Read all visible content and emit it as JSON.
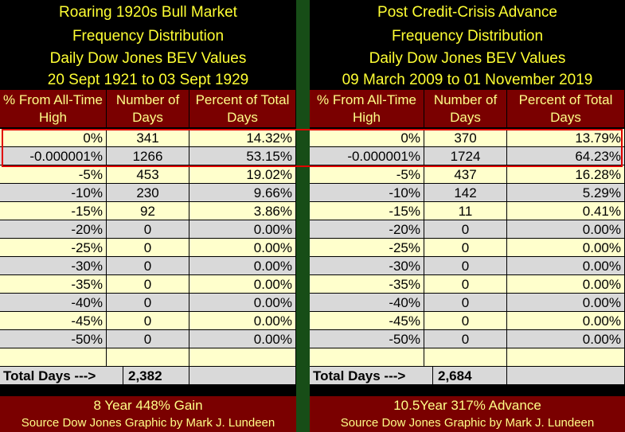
{
  "panels": [
    {
      "title": "Roaring 1920s Bull Market",
      "line2": "Frequency Distribution",
      "line3": "Daily Dow Jones BEV Values",
      "line4": "20 Sept 1921 to 03 Sept 1929",
      "headers": [
        "% From All-Time High",
        "Number of Days",
        "Percent of Total Days"
      ],
      "rows": [
        [
          "0%",
          "341",
          "14.32%"
        ],
        [
          "-0.000001%",
          "1266",
          "53.15%"
        ],
        [
          "-5%",
          "453",
          "19.02%"
        ],
        [
          "-10%",
          "230",
          "9.66%"
        ],
        [
          "-15%",
          "92",
          "3.86%"
        ],
        [
          "-20%",
          "0",
          "0.00%"
        ],
        [
          "-25%",
          "0",
          "0.00%"
        ],
        [
          "-30%",
          "0",
          "0.00%"
        ],
        [
          "-35%",
          "0",
          "0.00%"
        ],
        [
          "-40%",
          "0",
          "0.00%"
        ],
        [
          "-45%",
          "0",
          "0.00%"
        ],
        [
          "-50%",
          "0",
          "0.00%"
        ]
      ],
      "total_label": "Total Days --->",
      "total_value": "2,382",
      "footer": "8 Year 448% Gain",
      "source": "Source Dow Jones   Graphic by Mark J. Lundeen"
    },
    {
      "title": "Post Credit-Crisis Advance",
      "line2": "Frequency Distribution",
      "line3": "Daily Dow Jones BEV Values",
      "line4": "09 March 2009 to 01 November 2019",
      "headers": [
        "% From All-Time High",
        "Number of Days",
        "Percent of Total Days"
      ],
      "rows": [
        [
          "0%",
          "370",
          "13.79%"
        ],
        [
          "-0.000001%",
          "1724",
          "64.23%"
        ],
        [
          "-5%",
          "437",
          "16.28%"
        ],
        [
          "-10%",
          "142",
          "5.29%"
        ],
        [
          "-15%",
          "11",
          "0.41%"
        ],
        [
          "-20%",
          "0",
          "0.00%"
        ],
        [
          "-25%",
          "0",
          "0.00%"
        ],
        [
          "-30%",
          "0",
          "0.00%"
        ],
        [
          "-35%",
          "0",
          "0.00%"
        ],
        [
          "-40%",
          "0",
          "0.00%"
        ],
        [
          "-45%",
          "0",
          "0.00%"
        ],
        [
          "-50%",
          "0",
          "0.00%"
        ]
      ],
      "total_label": "Total Days --->",
      "total_value": "2,684",
      "footer": "10.5Year 317% Advance",
      "source": "Source Dow Jones   Graphic by Mark J. Lundeen"
    }
  ],
  "colors": {
    "header_text": "#ffff33",
    "maroon": "#7a0000",
    "row_yellow": "#ffffcc",
    "row_gray": "#d9d9d9",
    "divider_green": "#174d17",
    "highlight_red": "#e00000"
  },
  "chart_data": [
    {
      "type": "table",
      "title": "Roaring 1920s Bull Market",
      "columns": [
        "% From All-Time High",
        "Number of Days",
        "Percent of Total Days"
      ],
      "categories": [
        "0%",
        "-0.000001%",
        "-5%",
        "-10%",
        "-15%",
        "-20%",
        "-25%",
        "-30%",
        "-35%",
        "-40%",
        "-45%",
        "-50%"
      ],
      "series": [
        {
          "name": "Number of Days",
          "values": [
            341,
            1266,
            453,
            230,
            92,
            0,
            0,
            0,
            0,
            0,
            0,
            0
          ]
        },
        {
          "name": "Percent of Total Days",
          "values": [
            14.32,
            53.15,
            19.02,
            9.66,
            3.86,
            0,
            0,
            0,
            0,
            0,
            0,
            0
          ]
        }
      ],
      "total_days": 2382
    },
    {
      "type": "table",
      "title": "Post Credit-Crisis Advance",
      "columns": [
        "% From All-Time High",
        "Number of Days",
        "Percent of Total Days"
      ],
      "categories": [
        "0%",
        "-0.000001%",
        "-5%",
        "-10%",
        "-15%",
        "-20%",
        "-25%",
        "-30%",
        "-35%",
        "-40%",
        "-45%",
        "-50%"
      ],
      "series": [
        {
          "name": "Number of Days",
          "values": [
            370,
            1724,
            437,
            142,
            11,
            0,
            0,
            0,
            0,
            0,
            0,
            0
          ]
        },
        {
          "name": "Percent of Total Days",
          "values": [
            13.79,
            64.23,
            16.28,
            5.29,
            0.41,
            0,
            0,
            0,
            0,
            0,
            0,
            0
          ]
        }
      ],
      "total_days": 2684
    }
  ]
}
